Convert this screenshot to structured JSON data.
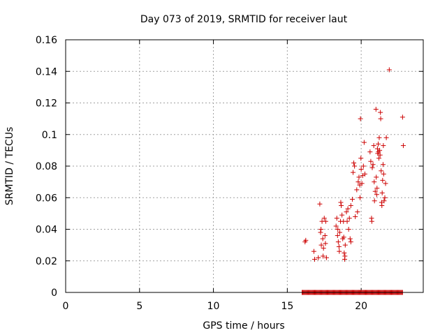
{
  "chart_data": {
    "type": "scatter",
    "title": "Day 073 of 2019, SRMTID for receiver laut",
    "xlabel": "GPS time / hours",
    "ylabel": "SRMTID / TECUs",
    "xlim": [
      0,
      24.2
    ],
    "ylim": [
      0,
      0.16
    ],
    "xticks": [
      "0",
      "5",
      "10",
      "15",
      "20"
    ],
    "yticks": [
      "0",
      "0.02",
      "0.04",
      "0.06",
      "0.08",
      "0.1",
      "0.12",
      "0.14",
      "0.16"
    ],
    "grid": true,
    "marker": "+",
    "colors": {
      "series": "#cc0000",
      "grid": "#a0a0a0",
      "axis": "#000000"
    },
    "series": [
      {
        "points": [
          [
            16.2,
            0.032
          ],
          [
            16.25,
            0.033
          ],
          [
            16.8,
            0.026
          ],
          [
            16.85,
            0.021
          ],
          [
            17.1,
            0.022
          ],
          [
            17.2,
            0.056
          ],
          [
            17.25,
            0.038
          ],
          [
            17.28,
            0.04
          ],
          [
            17.3,
            0.03
          ],
          [
            17.35,
            0.045
          ],
          [
            17.4,
            0.034
          ],
          [
            17.42,
            0.023
          ],
          [
            17.45,
            0.028
          ],
          [
            17.5,
            0.047
          ],
          [
            17.55,
            0.036
          ],
          [
            17.58,
            0.031
          ],
          [
            17.6,
            0.045
          ],
          [
            17.65,
            0.022
          ],
          [
            18.3,
            0.042
          ],
          [
            18.35,
            0.047
          ],
          [
            18.4,
            0.036
          ],
          [
            18.42,
            0.04
          ],
          [
            18.45,
            0.032
          ],
          [
            18.5,
            0.029
          ],
          [
            18.52,
            0.026
          ],
          [
            18.55,
            0.038
          ],
          [
            18.6,
            0.045
          ],
          [
            18.62,
            0.057
          ],
          [
            18.65,
            0.055
          ],
          [
            18.7,
            0.049
          ],
          [
            18.75,
            0.034
          ],
          [
            18.8,
            0.045
          ],
          [
            18.82,
            0.035
          ],
          [
            18.85,
            0.025
          ],
          [
            18.88,
            0.021
          ],
          [
            18.9,
            0.023
          ],
          [
            18.92,
            0.03
          ],
          [
            19.0,
            0.051
          ],
          [
            19.05,
            0.045
          ],
          [
            19.1,
            0.053
          ],
          [
            19.15,
            0.04
          ],
          [
            19.2,
            0.047
          ],
          [
            19.25,
            0.034
          ],
          [
            19.3,
            0.032
          ],
          [
            19.3,
            0.055
          ],
          [
            19.4,
            0.059
          ],
          [
            19.45,
            0.076
          ],
          [
            19.5,
            0.082
          ],
          [
            19.55,
            0.08
          ],
          [
            19.6,
            0.048
          ],
          [
            19.7,
            0.065
          ],
          [
            19.75,
            0.051
          ],
          [
            19.8,
            0.07
          ],
          [
            19.85,
            0.073
          ],
          [
            19.9,
            0.068
          ],
          [
            19.92,
            0.06
          ],
          [
            19.95,
            0.11
          ],
          [
            19.98,
            0.085
          ],
          [
            20.0,
            0.078
          ],
          [
            20.05,
            0.069
          ],
          [
            20.1,
            0.074
          ],
          [
            20.15,
            0.08
          ],
          [
            20.2,
            0.095
          ],
          [
            20.25,
            0.075
          ],
          [
            20.6,
            0.089
          ],
          [
            20.65,
            0.083
          ],
          [
            20.7,
            0.047
          ],
          [
            20.72,
            0.045
          ],
          [
            20.75,
            0.079
          ],
          [
            20.8,
            0.081
          ],
          [
            20.85,
            0.093
          ],
          [
            20.88,
            0.07
          ],
          [
            20.9,
            0.058
          ],
          [
            20.95,
            0.064
          ],
          [
            21.0,
            0.116
          ],
          [
            21.02,
            0.073
          ],
          [
            21.05,
            0.062
          ],
          [
            21.07,
            0.066
          ],
          [
            21.1,
            0.091
          ],
          [
            21.12,
            0.088
          ],
          [
            21.15,
            0.094
          ],
          [
            21.17,
            0.089
          ],
          [
            21.2,
            0.085
          ],
          [
            21.22,
            0.098
          ],
          [
            21.25,
            0.09
          ],
          [
            21.28,
            0.087
          ],
          [
            21.3,
            0.114
          ],
          [
            21.32,
            0.11
          ],
          [
            21.35,
            0.077
          ],
          [
            21.38,
            0.057
          ],
          [
            21.4,
            0.055
          ],
          [
            21.42,
            0.063
          ],
          [
            21.45,
            0.071
          ],
          [
            21.48,
            0.081
          ],
          [
            21.5,
            0.093
          ],
          [
            21.52,
            0.075
          ],
          [
            21.55,
            0.058
          ],
          [
            21.6,
            0.06
          ],
          [
            21.65,
            0.069
          ],
          [
            21.7,
            0.098
          ],
          [
            21.9,
            0.141
          ],
          [
            22.8,
            0.111
          ],
          [
            22.85,
            0.093
          ]
        ]
      }
    ],
    "zero_band": {
      "x_from": 16.0,
      "x_to": 22.8,
      "y": 0
    }
  }
}
